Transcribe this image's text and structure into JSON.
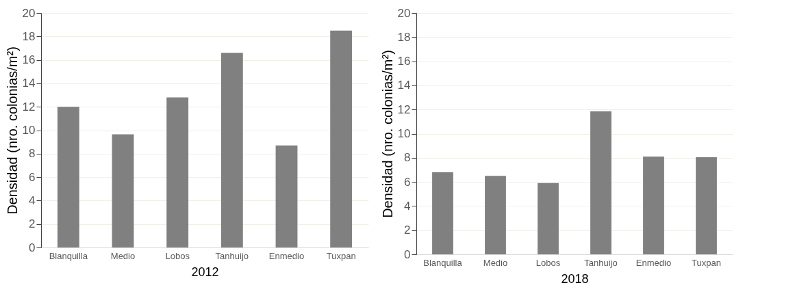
{
  "chart_data": [
    {
      "type": "bar",
      "xlabel": "2012",
      "ylabel": "Densidad (nro. colonias/m²)",
      "categories": [
        "Blanquilla",
        "Medio",
        "Lobos",
        "Tanhuijo",
        "Enmedio",
        "Tuxpan"
      ],
      "values": [
        12.0,
        9.65,
        12.8,
        16.6,
        8.7,
        18.5
      ],
      "color": "#808080",
      "ylim": [
        0,
        20
      ],
      "yticks": [
        0,
        2,
        4,
        6,
        8,
        10,
        12,
        14,
        16,
        18,
        20
      ],
      "grid": "y"
    },
    {
      "type": "bar",
      "xlabel": "2018",
      "ylabel": "Densidad (nro. colonias/m²)",
      "categories": [
        "Blanquilla",
        "Medio",
        "Lobos",
        "Tanhuijo",
        "Enmedio",
        "Tuxpan"
      ],
      "values": [
        6.8,
        6.5,
        5.9,
        11.85,
        8.1,
        8.05
      ],
      "color": "#808080",
      "ylim": [
        0,
        20
      ],
      "yticks": [
        0,
        2,
        4,
        6,
        8,
        10,
        12,
        14,
        16,
        18,
        20
      ],
      "grid": "y"
    }
  ]
}
